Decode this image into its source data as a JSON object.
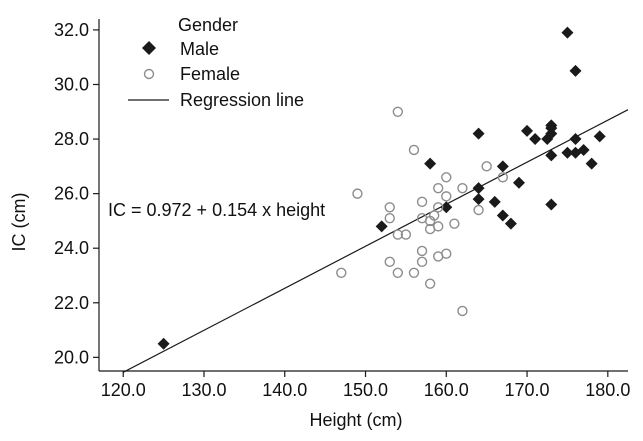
{
  "chart_data": {
    "type": "scatter",
    "title": "",
    "xlabel": "Height (cm)",
    "ylabel": "IC (cm)",
    "xlim": [
      117,
      182.5
    ],
    "ylim": [
      19.5,
      32.4
    ],
    "xticks": [
      120,
      130,
      140,
      150,
      160,
      170,
      180
    ],
    "yticks": [
      20,
      22,
      24,
      26,
      28,
      30,
      32
    ],
    "xtick_labels": [
      "120.0",
      "130.0",
      "140.0",
      "150.0",
      "160.0",
      "170.0",
      "180.0"
    ],
    "ytick_labels": [
      "20.0",
      "22.0",
      "24.0",
      "26.0",
      "28.0",
      "30.0",
      "32.0"
    ],
    "grid": false,
    "legend": {
      "title": "Gender",
      "placement": "top-left",
      "entries": [
        "Male",
        "Female",
        "Regression line"
      ]
    },
    "annotation": "IC = 0.972 + 0.154 x height",
    "regression": {
      "intercept": 0.972,
      "slope": 0.154,
      "x_range": [
        120,
        182.5
      ]
    },
    "series": [
      {
        "name": "Male",
        "marker": "diamond-filled",
        "color": "#1a1a1a",
        "points": [
          [
            125,
            20.5
          ],
          [
            152,
            24.8
          ],
          [
            158,
            27.1
          ],
          [
            160,
            25.5
          ],
          [
            164,
            28.2
          ],
          [
            164,
            26.2
          ],
          [
            164,
            25.8
          ],
          [
            166,
            25.7
          ],
          [
            167,
            27.0
          ],
          [
            167,
            25.2
          ],
          [
            168,
            24.9
          ],
          [
            169,
            26.4
          ],
          [
            170,
            28.3
          ],
          [
            171,
            28.0
          ],
          [
            172.5,
            28.0
          ],
          [
            173,
            28.2
          ],
          [
            173,
            28.4
          ],
          [
            173,
            28.5
          ],
          [
            173,
            27.4
          ],
          [
            173,
            25.6
          ],
          [
            175,
            27.5
          ],
          [
            175,
            31.9
          ],
          [
            176,
            28.0
          ],
          [
            176,
            27.5
          ],
          [
            176,
            30.5
          ],
          [
            177,
            27.6
          ],
          [
            178,
            27.1
          ],
          [
            179,
            28.1
          ]
        ]
      },
      {
        "name": "Female",
        "marker": "circle-open",
        "color": "#8c8c8c",
        "points": [
          [
            147,
            23.1
          ],
          [
            149,
            26.0
          ],
          [
            153,
            25.5
          ],
          [
            153,
            25.1
          ],
          [
            153,
            23.5
          ],
          [
            154,
            29.0
          ],
          [
            154,
            24.5
          ],
          [
            154,
            23.1
          ],
          [
            155,
            24.5
          ],
          [
            156,
            27.6
          ],
          [
            156,
            23.1
          ],
          [
            157,
            25.7
          ],
          [
            157,
            25.1
          ],
          [
            157,
            23.9
          ],
          [
            157,
            23.5
          ],
          [
            158,
            25.0
          ],
          [
            158,
            24.7
          ],
          [
            158,
            22.7
          ],
          [
            158.5,
            25.2
          ],
          [
            159,
            26.2
          ],
          [
            159,
            25.5
          ],
          [
            159,
            24.8
          ],
          [
            159,
            23.7
          ],
          [
            160,
            26.6
          ],
          [
            160,
            25.9
          ],
          [
            160,
            23.8
          ],
          [
            161,
            24.9
          ],
          [
            162,
            26.2
          ],
          [
            162,
            21.7
          ],
          [
            164,
            25.4
          ],
          [
            165,
            27.0
          ],
          [
            167,
            26.6
          ]
        ]
      }
    ]
  }
}
